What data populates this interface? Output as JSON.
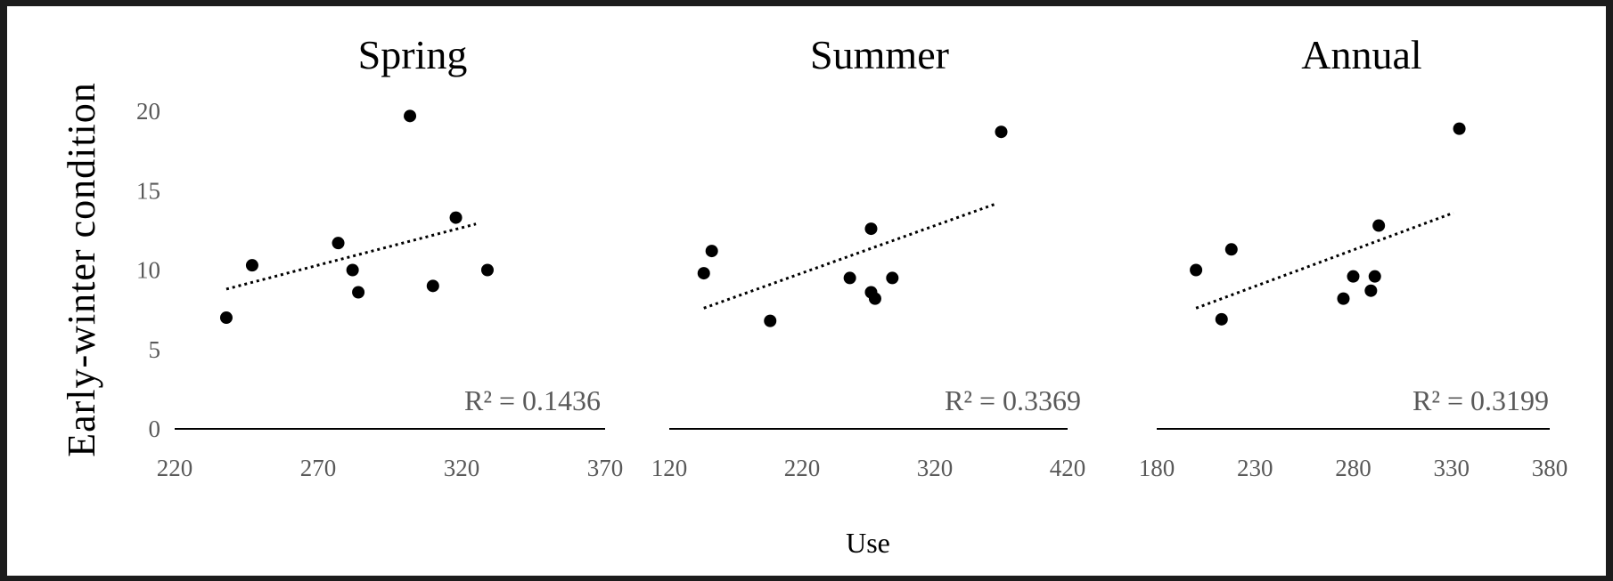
{
  "y_axis_label": "Early-winter condition",
  "x_axis_label": "Use",
  "colors": {
    "background": "#ffffff",
    "frame": "#1c1c1c",
    "points": "#000000",
    "ticks": "#595959"
  },
  "chart_data": [
    {
      "type": "scatter",
      "title": "Spring",
      "xlim": [
        220,
        370
      ],
      "ylim": [
        0,
        20
      ],
      "x_ticks": [
        220,
        270,
        320,
        370
      ],
      "y_ticks": [
        0,
        5,
        10,
        15,
        20
      ],
      "points": [
        {
          "x": 238,
          "y": 7.0
        },
        {
          "x": 247,
          "y": 10.3
        },
        {
          "x": 277,
          "y": 11.7
        },
        {
          "x": 282,
          "y": 10.0
        },
        {
          "x": 284,
          "y": 8.6
        },
        {
          "x": 302,
          "y": 19.7
        },
        {
          "x": 310,
          "y": 9.0
        },
        {
          "x": 318,
          "y": 13.3
        },
        {
          "x": 329,
          "y": 10.0
        }
      ],
      "trendline": {
        "style": "dotted",
        "from": [
          238,
          8.8
        ],
        "to": [
          325,
          12.9
        ]
      },
      "r_squared": "R² = 0.1436"
    },
    {
      "type": "scatter",
      "title": "Summer",
      "xlim": [
        120,
        420
      ],
      "ylim": [
        0,
        20
      ],
      "x_ticks": [
        120,
        220,
        320,
        420
      ],
      "points": [
        {
          "x": 146,
          "y": 9.8
        },
        {
          "x": 152,
          "y": 11.2
        },
        {
          "x": 196,
          "y": 6.8
        },
        {
          "x": 256,
          "y": 9.5
        },
        {
          "x": 272,
          "y": 12.6
        },
        {
          "x": 272,
          "y": 8.6
        },
        {
          "x": 275,
          "y": 8.2
        },
        {
          "x": 288,
          "y": 9.5
        },
        {
          "x": 370,
          "y": 18.7
        }
      ],
      "trendline": {
        "style": "dotted",
        "from": [
          146,
          7.6
        ],
        "to": [
          367,
          14.2
        ]
      },
      "r_squared": "R² = 0.3369"
    },
    {
      "type": "scatter",
      "title": "Annual",
      "xlim": [
        180,
        380
      ],
      "ylim": [
        0,
        20
      ],
      "x_ticks": [
        180,
        230,
        280,
        330,
        380
      ],
      "points": [
        {
          "x": 200,
          "y": 10.0
        },
        {
          "x": 213,
          "y": 6.9
        },
        {
          "x": 218,
          "y": 11.3
        },
        {
          "x": 275,
          "y": 8.2
        },
        {
          "x": 280,
          "y": 9.6
        },
        {
          "x": 289,
          "y": 8.7
        },
        {
          "x": 291,
          "y": 9.6
        },
        {
          "x": 293,
          "y": 12.8
        },
        {
          "x": 334,
          "y": 18.9
        }
      ],
      "trendline": {
        "style": "dotted",
        "from": [
          200,
          7.6
        ],
        "to": [
          331,
          13.6
        ]
      },
      "r_squared": "R² = 0.3199"
    }
  ]
}
